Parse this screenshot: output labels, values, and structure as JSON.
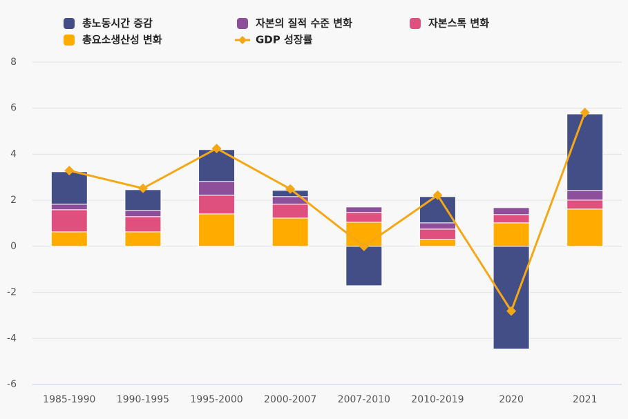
{
  "chart_data": {
    "type": "bar",
    "categories": [
      "1985-1990",
      "1990-1995",
      "1995-2000",
      "2000-2007",
      "2007-2010",
      "2010-2019",
      "2020",
      "2021"
    ],
    "series": [
      {
        "name": "총노동시간 증감",
        "color": "#434d86",
        "values": [
          1.41,
          0.9,
          1.38,
          0.27,
          -1.71,
          1.14,
          -4.46,
          3.32
        ]
      },
      {
        "name": "자본의 질적 수준 변화",
        "color": "#8e4f9a",
        "values": [
          0.24,
          0.27,
          0.6,
          0.33,
          0.24,
          0.27,
          0.3,
          0.42
        ]
      },
      {
        "name": "자본스톡 변화",
        "color": "#e0507f",
        "values": [
          0.96,
          0.66,
          0.81,
          0.6,
          0.42,
          0.45,
          0.36,
          0.39
        ]
      },
      {
        "name": "총요소생산성 변화",
        "color": "#ffab00",
        "values": [
          0.63,
          0.63,
          1.41,
          1.23,
          1.05,
          0.3,
          1.02,
          1.62
        ]
      },
      {
        "name": "GDP 성장률",
        "color": "#f5a817",
        "type": "line",
        "values": [
          3.29,
          2.52,
          4.25,
          2.49,
          0.0,
          2.22,
          -2.81,
          5.81
        ]
      }
    ],
    "ylim": [
      -6,
      8
    ],
    "yticks": [
      -6,
      -4,
      -2,
      0,
      2,
      4,
      6,
      8
    ],
    "grid": true
  }
}
